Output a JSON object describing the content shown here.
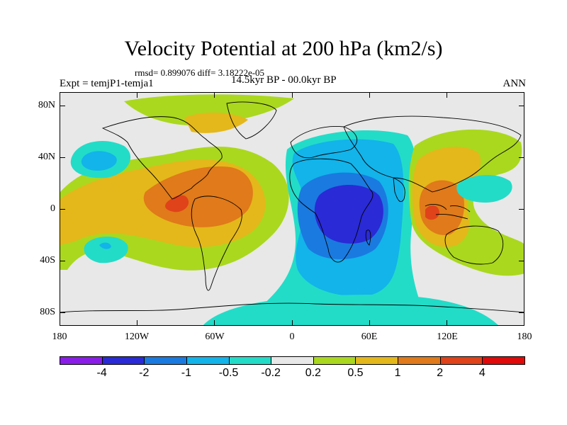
{
  "title": "Velocity Potential at 200 hPa (km2/s)",
  "stats": "rmsd= 0.899076 diff= 3.18222e-05",
  "experiment": "Expt = temjP1-temja1",
  "period": "14.5kyr BP - 00.0kyr BP",
  "season": "ANN",
  "lat_labels": [
    "80N",
    "40N",
    "0",
    "40S",
    "80S"
  ],
  "lon_labels": [
    "180",
    "120W",
    "60W",
    "0",
    "60E",
    "120E",
    "180"
  ],
  "colorbar": {
    "labels": [
      "-4",
      "-2",
      "-1",
      "-0.5",
      "-0.2",
      "0.2",
      "0.5",
      "1",
      "2",
      "4"
    ],
    "colors": [
      "#8a1ee8",
      "#2a2ad6",
      "#1a7ae0",
      "#12b4ea",
      "#22dcc8",
      "#e8e8e8",
      "#aad81e",
      "#e4b81a",
      "#e07a1a",
      "#e0421a",
      "#e00a0a"
    ]
  },
  "colors": {
    "neutral": "#e8e8e8",
    "land_outline": "#000000"
  }
}
